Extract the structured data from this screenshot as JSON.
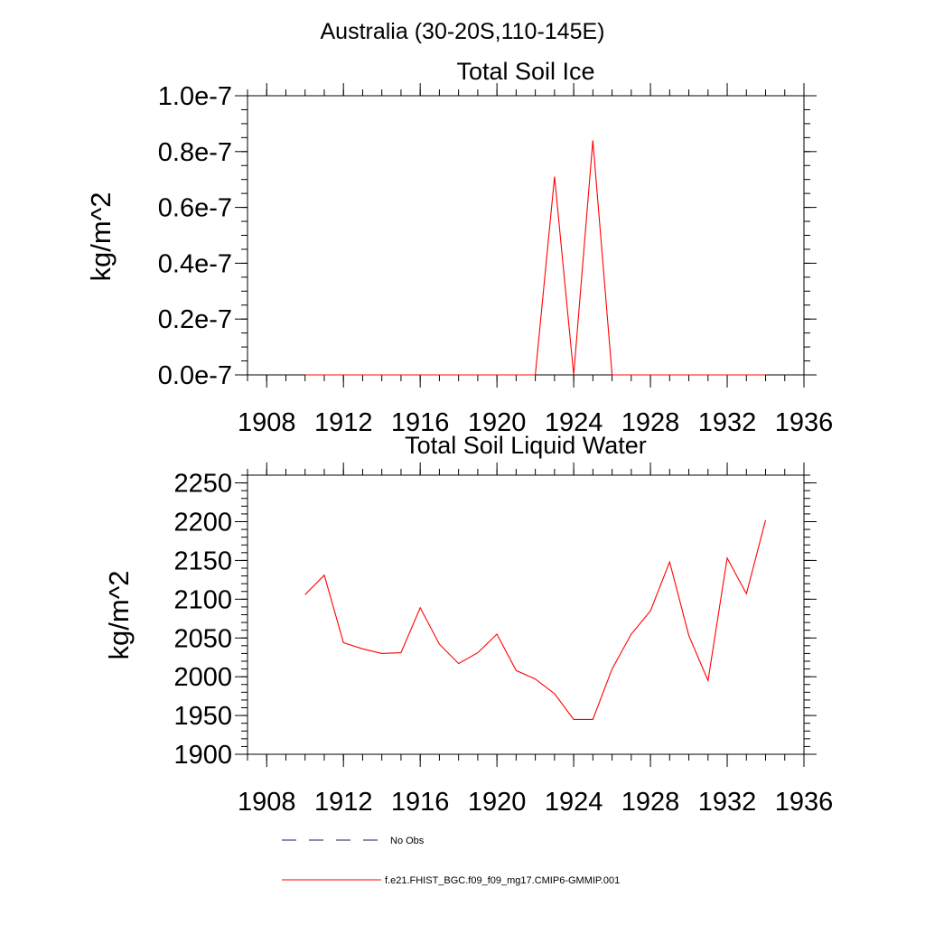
{
  "figure_title": "Australia (30-20S,110-145E)",
  "colors": {
    "model_line": "#ff0000",
    "obs_line": "#1a1a5a",
    "axis": "#000000"
  },
  "legend": {
    "entries": [
      {
        "label": "No Obs",
        "style": "dashed",
        "color": "#1a1a5a"
      },
      {
        "label": "f.e21.FHIST_BGC.f09_f09_mg17.CMIP6-GMMIP.001",
        "style": "solid",
        "color": "#ff0000"
      }
    ]
  },
  "chart_data": [
    {
      "type": "line",
      "title": "Total Soil Ice",
      "xlabel": "",
      "ylabel": "kg/m^2",
      "xlim": [
        1907,
        1936
      ],
      "ylim": [
        0,
        1e-07
      ],
      "x_ticks": [
        1908,
        1912,
        1916,
        1920,
        1924,
        1928,
        1932,
        1936
      ],
      "x_tick_labels": [
        "1908",
        "1912",
        "1916",
        "1920",
        "1924",
        "1928",
        "1932",
        "1936"
      ],
      "y_ticks": [
        0,
        2e-08,
        4e-08,
        6e-08,
        8e-08,
        1e-07
      ],
      "y_tick_labels": [
        "0.0e-7",
        "0.2e-7",
        "0.4e-7",
        "0.6e-7",
        "0.8e-7",
        "1.0e-7"
      ],
      "y_minor_step": 5e-09,
      "x_minor_step": 1,
      "grid": false,
      "series": [
        {
          "name": "f.e21.FHIST_BGC.f09_f09_mg17.CMIP6-GMMIP.001",
          "color": "#ff0000",
          "x": [
            1910,
            1911,
            1912,
            1913,
            1914,
            1915,
            1916,
            1917,
            1918,
            1919,
            1920,
            1921,
            1922,
            1923,
            1924,
            1925,
            1926,
            1927,
            1928,
            1929,
            1930,
            1931,
            1932,
            1933,
            1934
          ],
          "values": [
            0,
            0,
            0,
            0,
            0,
            0,
            0,
            0,
            0,
            0,
            0,
            0,
            0,
            7.1e-08,
            0,
            8.4e-08,
            0,
            0,
            0,
            0,
            0,
            0,
            0,
            0,
            0
          ]
        }
      ]
    },
    {
      "type": "line",
      "title": "Total Soil Liquid Water",
      "xlabel": "",
      "ylabel": "kg/m^2",
      "xlim": [
        1907,
        1936
      ],
      "ylim": [
        1900,
        2260
      ],
      "x_ticks": [
        1908,
        1912,
        1916,
        1920,
        1924,
        1928,
        1932,
        1936
      ],
      "x_tick_labels": [
        "1908",
        "1912",
        "1916",
        "1920",
        "1924",
        "1928",
        "1932",
        "1936"
      ],
      "y_ticks": [
        1900,
        1950,
        2000,
        2050,
        2100,
        2150,
        2200,
        2250
      ],
      "y_tick_labels": [
        "1900",
        "1950",
        "2000",
        "2050",
        "2100",
        "2150",
        "2200",
        "2250"
      ],
      "y_minor_step": 10,
      "x_minor_step": 1,
      "grid": false,
      "series": [
        {
          "name": "f.e21.FHIST_BGC.f09_f09_mg17.CMIP6-GMMIP.001",
          "color": "#ff0000",
          "x": [
            1910,
            1911,
            1912,
            1913,
            1914,
            1915,
            1916,
            1917,
            1918,
            1919,
            1920,
            1921,
            1922,
            1923,
            1924,
            1925,
            1926,
            1927,
            1928,
            1929,
            1930,
            1931,
            1932,
            1933,
            1934
          ],
          "values": [
            2106,
            2131,
            2044,
            2036,
            2030,
            2031,
            2089,
            2042,
            2017,
            2031,
            2055,
            2008,
            1997,
            1978,
            1945,
            1945,
            2010,
            2055,
            2085,
            2148,
            2053,
            1995,
            2153,
            2107,
            2202
          ]
        }
      ]
    }
  ]
}
